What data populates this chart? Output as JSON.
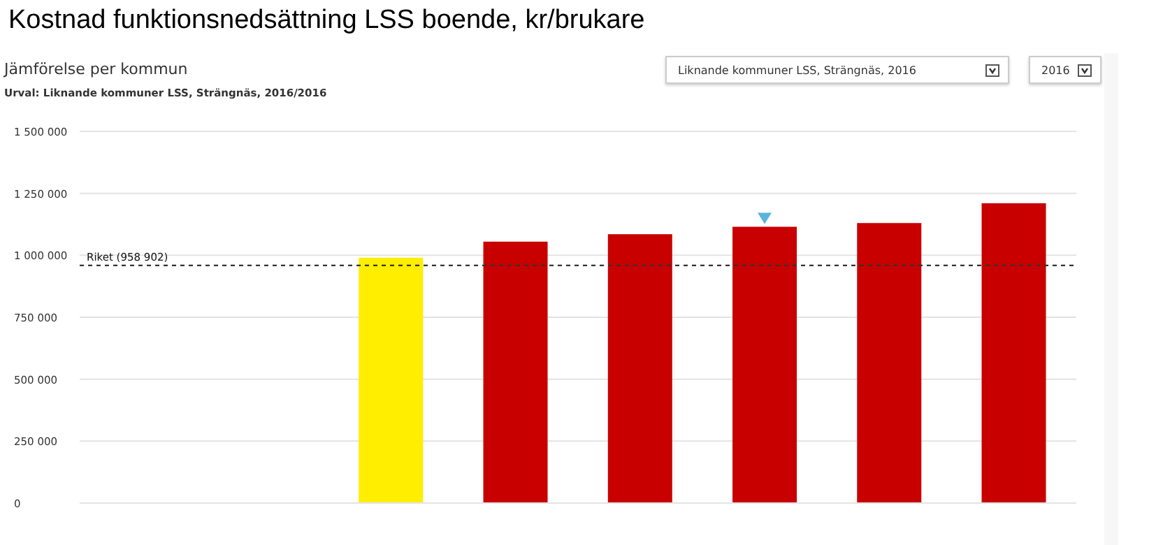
{
  "chart_data": {
    "type": "bar",
    "title": "Kostnad funktionsnedsättning LSS boende, kr/brukare",
    "subtitle": "Jämförelse per kommun",
    "annotations": [
      "Urval: Liknande kommuner LSS, Strängnäs, 2016/2016",
      "Liknande kommuner LSS, Strängnäs, 2016",
      "2016"
    ],
    "categories": [
      null,
      null,
      null,
      null,
      null,
      null,
      null,
      null
    ],
    "values": [
      null,
      null,
      990000,
      1055000,
      1085000,
      1115000,
      1130000,
      1210000
    ],
    "colors": [
      "#c80000",
      "#c80000",
      "#ffee00",
      "#c80000",
      "#c80000",
      "#c80000",
      "#c80000",
      "#c80000"
    ],
    "ylim": [
      0,
      1500000
    ],
    "yticks": [
      0,
      250000,
      500000,
      750000,
      1000000,
      1250000,
      1500000
    ],
    "grid": "y",
    "ref_lines": [
      {
        "axis": "y",
        "value": 958902,
        "label": "Riket (958 902)",
        "color": "#333333",
        "line_style": "dashed"
      }
    ]
  }
}
